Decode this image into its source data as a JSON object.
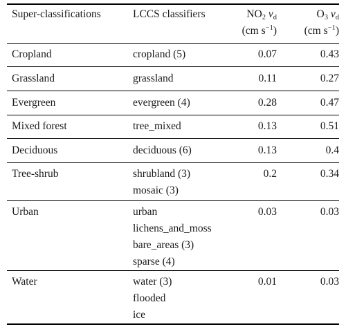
{
  "headers": {
    "super": "Super-classifications",
    "lccs": "LCCS classifiers",
    "no2_prefix": "NO",
    "no2_sub": "2",
    "o3_prefix": "O",
    "o3_sub": "3",
    "vd_symbol": "v",
    "vd_sub": "d",
    "unit_base": "(cm s",
    "unit_exp": "−1",
    "unit_close": ")"
  },
  "rows": [
    {
      "super": "Cropland",
      "classifiers": [
        "cropland (5)"
      ],
      "no2": "0.07",
      "o3": "0.43"
    },
    {
      "super": "Grassland",
      "classifiers": [
        "grassland"
      ],
      "no2": "0.11",
      "o3": "0.27"
    },
    {
      "super": "Evergreen",
      "classifiers": [
        "evergreen (4)"
      ],
      "no2": "0.28",
      "o3": "0.47"
    },
    {
      "super": "Mixed forest",
      "classifiers": [
        "tree_mixed"
      ],
      "no2": "0.13",
      "o3": "0.51"
    },
    {
      "super": "Deciduous",
      "classifiers": [
        "deciduous (6)"
      ],
      "no2": "0.13",
      "o3": "0.4"
    },
    {
      "super": "Tree-shrub",
      "classifiers": [
        "shrubland (3)",
        "mosaic (3)"
      ],
      "no2": "0.2",
      "o3": "0.34"
    },
    {
      "super": "Urban",
      "classifiers": [
        "urban",
        "lichens_and_moss",
        "bare_areas (3)",
        "sparse (4)"
      ],
      "no2": "0.03",
      "o3": "0.03"
    },
    {
      "super": "Water",
      "classifiers": [
        "water (3)",
        "flooded",
        "ice"
      ],
      "no2": "0.01",
      "o3": "0.03"
    }
  ]
}
